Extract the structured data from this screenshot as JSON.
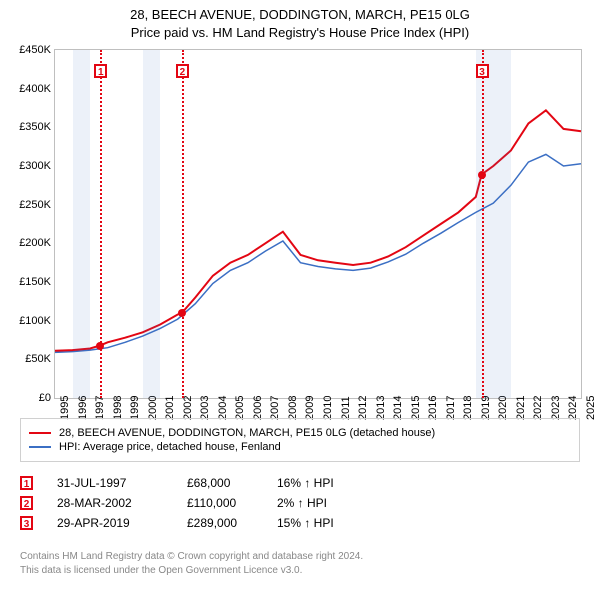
{
  "title": "28, BEECH AVENUE, DODDINGTON, MARCH, PE15 0LG",
  "subtitle": "Price paid vs. HM Land Registry's House Price Index (HPI)",
  "chart": {
    "type": "line",
    "ylim": [
      0,
      450000
    ],
    "ytick_step": 50000,
    "y_ticks": [
      "£0",
      "£50K",
      "£100K",
      "£150K",
      "£200K",
      "£250K",
      "£300K",
      "£350K",
      "£400K",
      "£450K"
    ],
    "x_years": [
      1995,
      1996,
      1997,
      1998,
      1999,
      2000,
      2001,
      2002,
      2003,
      2004,
      2005,
      2006,
      2007,
      2008,
      2009,
      2010,
      2011,
      2012,
      2013,
      2014,
      2015,
      2016,
      2017,
      2018,
      2019,
      2020,
      2021,
      2022,
      2023,
      2024,
      2025
    ],
    "shaded_pairs": [
      [
        1996,
        1997
      ],
      [
        2000,
        2001
      ],
      [
        2019,
        2021
      ]
    ],
    "background_color": "#ffffff",
    "grid_color": "#bfbfbf",
    "shade_color": "rgba(70,120,200,0.10)",
    "series": {
      "property": {
        "label": "28, BEECH AVENUE, DODDINGTON, MARCH, PE15 0LG (detached house)",
        "color": "#e30613",
        "width": 2,
        "points_year_value": [
          [
            1995,
            61000
          ],
          [
            1996,
            62000
          ],
          [
            1997,
            64000
          ],
          [
            1997.58,
            68000
          ],
          [
            1998,
            72000
          ],
          [
            1999,
            78000
          ],
          [
            2000,
            85000
          ],
          [
            2001,
            95000
          ],
          [
            2002,
            108000
          ],
          [
            2002.24,
            110000
          ],
          [
            2003,
            130000
          ],
          [
            2004,
            158000
          ],
          [
            2005,
            175000
          ],
          [
            2006,
            185000
          ],
          [
            2007,
            200000
          ],
          [
            2008,
            215000
          ],
          [
            2009,
            185000
          ],
          [
            2010,
            178000
          ],
          [
            2011,
            175000
          ],
          [
            2012,
            172000
          ],
          [
            2013,
            175000
          ],
          [
            2014,
            183000
          ],
          [
            2015,
            195000
          ],
          [
            2016,
            210000
          ],
          [
            2017,
            225000
          ],
          [
            2018,
            240000
          ],
          [
            2019,
            260000
          ],
          [
            2019.33,
            289000
          ],
          [
            2020,
            300000
          ],
          [
            2021,
            320000
          ],
          [
            2022,
            355000
          ],
          [
            2023,
            372000
          ],
          [
            2024,
            348000
          ],
          [
            2025,
            345000
          ]
        ]
      },
      "hpi": {
        "label": "HPI: Average price, detached house, Fenland",
        "color": "#3b6fc4",
        "width": 1.5,
        "points_year_value": [
          [
            1995,
            59000
          ],
          [
            1996,
            60000
          ],
          [
            1997,
            62000
          ],
          [
            1998,
            65000
          ],
          [
            1999,
            72000
          ],
          [
            2000,
            80000
          ],
          [
            2001,
            90000
          ],
          [
            2002,
            102000
          ],
          [
            2003,
            122000
          ],
          [
            2004,
            148000
          ],
          [
            2005,
            165000
          ],
          [
            2006,
            175000
          ],
          [
            2007,
            190000
          ],
          [
            2008,
            203000
          ],
          [
            2009,
            175000
          ],
          [
            2010,
            170000
          ],
          [
            2011,
            167000
          ],
          [
            2012,
            165000
          ],
          [
            2013,
            168000
          ],
          [
            2014,
            176000
          ],
          [
            2015,
            186000
          ],
          [
            2016,
            200000
          ],
          [
            2017,
            213000
          ],
          [
            2018,
            227000
          ],
          [
            2019,
            240000
          ],
          [
            2020,
            252000
          ],
          [
            2021,
            275000
          ],
          [
            2022,
            305000
          ],
          [
            2023,
            315000
          ],
          [
            2024,
            300000
          ],
          [
            2025,
            303000
          ]
        ]
      }
    },
    "events": [
      {
        "n": "1",
        "year": 1997.58,
        "value": 68000
      },
      {
        "n": "2",
        "year": 2002.24,
        "value": 110000
      },
      {
        "n": "3",
        "year": 2019.33,
        "value": 289000
      }
    ]
  },
  "legend": {
    "rows": [
      {
        "color": "#e30613",
        "text": "28, BEECH AVENUE, DODDINGTON, MARCH, PE15 0LG (detached house)"
      },
      {
        "color": "#3b6fc4",
        "text": "HPI: Average price, detached house, Fenland"
      }
    ]
  },
  "trades": [
    {
      "n": "1",
      "date": "31-JUL-1997",
      "price": "£68,000",
      "delta": "16% ↑ HPI"
    },
    {
      "n": "2",
      "date": "28-MAR-2002",
      "price": "£110,000",
      "delta": "2% ↑ HPI"
    },
    {
      "n": "3",
      "date": "29-APR-2019",
      "price": "£289,000",
      "delta": "15% ↑ HPI"
    }
  ],
  "footer": {
    "l1": "Contains HM Land Registry data © Crown copyright and database right 2024.",
    "l2": "This data is licensed under the Open Government Licence v3.0."
  }
}
